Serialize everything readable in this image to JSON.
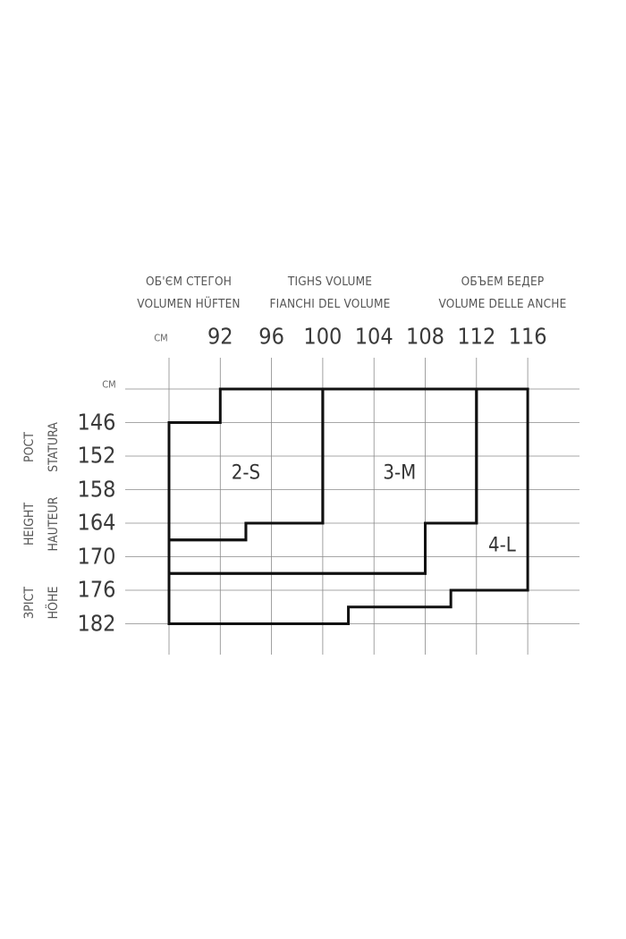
{
  "header": {
    "col1": [
      "ОБ'ЄМ СТЕГОН",
      "VOLUMEN HÜFTEN"
    ],
    "col2": [
      "TIGHS VOLUME",
      "FIANCHI DEL VOLUME"
    ],
    "col3": [
      "ОБЪЕМ БЕДЕР",
      "VOLUME DELLE ANCHE"
    ]
  },
  "side": {
    "group1": [
      "РОСТ",
      "STATURA"
    ],
    "group2": [
      "HEIGHT",
      "HAUTEUR"
    ],
    "group3": [
      "ЗРІСТ",
      "HÖHE"
    ]
  },
  "chart_data": {
    "type": "region",
    "x_unit": "CM",
    "y_unit": "CM",
    "x_ticks": [
      "92",
      "96",
      "100",
      "104",
      "108",
      "112",
      "116"
    ],
    "y_ticks": [
      "146",
      "152",
      "158",
      "164",
      "170",
      "176",
      "182"
    ],
    "xlim": [
      88,
      116
    ],
    "ylim": [
      140,
      182
    ],
    "grid": true,
    "regions": [
      {
        "name": "2-S",
        "polygon": [
          [
            88,
            146
          ],
          [
            92,
            146
          ],
          [
            92,
            140
          ],
          [
            100,
            140
          ],
          [
            100,
            164
          ],
          [
            94,
            164
          ],
          [
            94,
            167
          ],
          [
            88,
            167
          ]
        ],
        "label_at": [
          94,
          155
        ]
      },
      {
        "name": "3-M",
        "polygon": [
          [
            100,
            140
          ],
          [
            112,
            140
          ],
          [
            112,
            164
          ],
          [
            108,
            164
          ],
          [
            108,
            173
          ],
          [
            88,
            173
          ],
          [
            88,
            167
          ],
          [
            94,
            167
          ],
          [
            94,
            164
          ],
          [
            100,
            164
          ]
        ],
        "label_at": [
          106,
          155
        ]
      },
      {
        "name": "4-L",
        "polygon": [
          [
            112,
            140
          ],
          [
            116,
            140
          ],
          [
            116,
            176
          ],
          [
            110,
            176
          ],
          [
            110,
            179
          ],
          [
            102,
            179
          ],
          [
            102,
            182
          ],
          [
            88,
            182
          ],
          [
            88,
            173
          ],
          [
            108,
            173
          ],
          [
            108,
            164
          ],
          [
            112,
            164
          ]
        ],
        "label_at": [
          114,
          168
        ]
      }
    ],
    "colors": {
      "grid": "#8a8a8a",
      "outline": "#111111",
      "text": "#444444"
    }
  }
}
